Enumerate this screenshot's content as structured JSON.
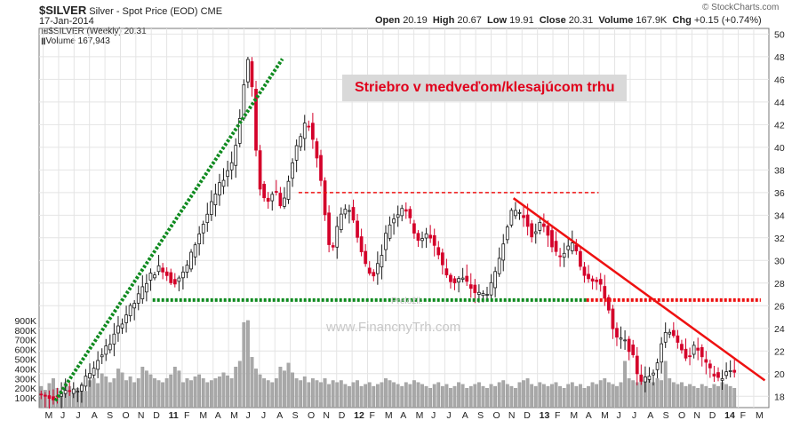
{
  "header": {
    "symbol": "$SILVER",
    "description": "Silver - Spot Price (EOD)",
    "exchange": "CME",
    "date": "17-Jan-2014",
    "open_label": "Open",
    "open": "20.19",
    "high_label": "High",
    "high": "20.67",
    "low_label": "Low",
    "low": "19.91",
    "close_label": "Close",
    "close": "20.31",
    "volume_label": "Volume",
    "volume": "167.9K",
    "chg_label": "Chg",
    "chg": "+0.15 (+0.74%)",
    "copyright": "© StockCharts.com"
  },
  "legend": {
    "price": "$SILVER (Weekly) 20.31",
    "volume": "Volume 167,943"
  },
  "annotation": {
    "title": "Striebro v medveďom/klesajúcom trhu",
    "translated": "Preložil:",
    "site": "www.FinancnyTrh.com"
  },
  "colors": {
    "up": "#1a1a1a",
    "down": "#d4002a",
    "grid": "#e4e4e4",
    "volume": "#a8a8a8",
    "green_line": "#0f8a1f",
    "red_line": "#ee1111"
  },
  "chart_data": {
    "type": "candlestick",
    "period": "weekly",
    "x_tick_labels": [
      "M",
      "J",
      "J",
      "A",
      "S",
      "O",
      "N",
      "D",
      "11",
      "F",
      "M",
      "A",
      "M",
      "J",
      "J",
      "A",
      "S",
      "O",
      "N",
      "D",
      "12",
      "F",
      "M",
      "A",
      "M",
      "J",
      "J",
      "A",
      "S",
      "O",
      "N",
      "D",
      "13",
      "F",
      "M",
      "A",
      "M",
      "J",
      "J",
      "A",
      "S",
      "O",
      "N",
      "D",
      "14",
      "F",
      "M"
    ],
    "y_ticks": [
      18,
      20,
      22,
      24,
      26,
      28,
      30,
      32,
      34,
      36,
      38,
      40,
      42,
      44,
      46,
      48,
      50
    ],
    "ylim": [
      17,
      50.5
    ],
    "volume_ticks": [
      "100K",
      "200K",
      "300K",
      "400K",
      "500K",
      "600K",
      "700K",
      "800K",
      "900K"
    ],
    "volume_ylim": [
      0,
      1000000
    ],
    "price_path": [
      [
        0,
        18.2
      ],
      [
        3,
        17.8
      ],
      [
        6,
        18.6
      ],
      [
        9,
        18.3
      ],
      [
        12,
        19.8
      ],
      [
        15,
        21.5
      ],
      [
        18,
        23.0
      ],
      [
        21,
        25.0
      ],
      [
        24,
        26.5
      ],
      [
        27,
        28.5
      ],
      [
        30,
        29.5
      ],
      [
        33,
        28.0
      ],
      [
        36,
        29.0
      ],
      [
        39,
        32.0
      ],
      [
        42,
        34.5
      ],
      [
        45,
        37.0
      ],
      [
        48,
        39.0
      ],
      [
        50,
        44.0
      ],
      [
        51,
        47.0
      ],
      [
        52,
        48.5
      ],
      [
        53,
        42.0
      ],
      [
        54,
        37.0
      ],
      [
        56,
        35.0
      ],
      [
        58,
        36.5
      ],
      [
        60,
        34.5
      ],
      [
        62,
        38.0
      ],
      [
        64,
        40.5
      ],
      [
        66,
        42.5
      ],
      [
        68,
        40.0
      ],
      [
        70,
        36.0
      ],
      [
        71,
        32.0
      ],
      [
        72,
        30.5
      ],
      [
        74,
        33.5
      ],
      [
        76,
        35.0
      ],
      [
        78,
        33.0
      ],
      [
        80,
        30.0
      ],
      [
        82,
        28.5
      ],
      [
        84,
        30.0
      ],
      [
        86,
        33.0
      ],
      [
        88,
        34.0
      ],
      [
        90,
        35.0
      ],
      [
        92,
        33.0
      ],
      [
        94,
        31.5
      ],
      [
        96,
        32.5
      ],
      [
        98,
        31.0
      ],
      [
        100,
        29.0
      ],
      [
        102,
        28.0
      ],
      [
        104,
        28.5
      ],
      [
        106,
        27.8
      ],
      [
        108,
        27.0
      ],
      [
        110,
        27.0
      ],
      [
        112,
        28.0
      ],
      [
        114,
        31.0
      ],
      [
        116,
        34.0
      ],
      [
        118,
        34.5
      ],
      [
        120,
        33.5
      ],
      [
        122,
        32.0
      ],
      [
        124,
        33.5
      ],
      [
        126,
        32.0
      ],
      [
        128,
        30.0
      ],
      [
        130,
        31.0
      ],
      [
        132,
        31.5
      ],
      [
        134,
        29.0
      ],
      [
        136,
        28.5
      ],
      [
        138,
        28.0
      ],
      [
        140,
        26.5
      ],
      [
        142,
        23.0
      ],
      [
        144,
        23.0
      ],
      [
        146,
        22.0
      ],
      [
        148,
        19.5
      ],
      [
        150,
        19.5
      ],
      [
        152,
        20.5
      ],
      [
        154,
        23.5
      ],
      [
        156,
        24.0
      ],
      [
        158,
        22.0
      ],
      [
        160,
        21.5
      ],
      [
        162,
        22.5
      ],
      [
        164,
        21.0
      ],
      [
        166,
        20.0
      ],
      [
        168,
        19.5
      ],
      [
        170,
        20.2
      ],
      [
        171,
        20.31
      ]
    ],
    "volume_values": [
      220000,
      180000,
      250000,
      300000,
      200000,
      160000,
      260000,
      220000,
      180000,
      200000,
      240000,
      170000,
      280000,
      300000,
      250000,
      350000,
      320000,
      260000,
      300000,
      400000,
      360000,
      280000,
      320000,
      260000,
      300000,
      420000,
      380000,
      340000,
      300000,
      280000,
      260000,
      300000,
      340000,
      420000,
      380000,
      260000,
      300000,
      280000,
      320000,
      340000,
      300000,
      260000,
      280000,
      300000,
      320000,
      360000,
      330000,
      300000,
      420000,
      480000,
      880000,
      900000,
      520000,
      400000,
      340000,
      300000,
      280000,
      260000,
      300000,
      420000,
      380000,
      460000,
      360000,
      300000,
      280000,
      320000,
      260000,
      300000,
      280000,
      260000,
      300000,
      240000,
      280000,
      260000,
      280000,
      240000,
      220000,
      260000,
      280000,
      220000,
      240000,
      260000,
      220000,
      240000,
      260000,
      300000,
      280000,
      260000,
      240000,
      220000,
      260000,
      240000,
      280000,
      260000,
      240000,
      220000,
      200000,
      240000,
      260000,
      220000,
      240000,
      200000,
      220000,
      260000,
      240000,
      200000,
      220000,
      240000,
      260000,
      220000,
      200000,
      240000,
      220000,
      260000,
      280000,
      240000,
      220000,
      200000,
      260000,
      280000,
      300000,
      240000,
      220000,
      260000,
      240000,
      220000,
      240000,
      260000,
      220000,
      200000,
      240000,
      260000,
      220000,
      240000,
      200000,
      220000,
      260000,
      240000,
      280000,
      300000,
      260000,
      240000,
      220000,
      260000,
      480000,
      300000,
      280000,
      260000,
      280000,
      320000,
      300000,
      260000,
      300000,
      280000,
      480000,
      300000,
      260000,
      240000,
      260000,
      220000,
      240000,
      220000,
      200000,
      240000,
      220000,
      200000,
      240000,
      220000,
      260000,
      240000,
      220000,
      200000,
      240000,
      220000,
      200000,
      210000,
      167943
    ],
    "annotations": [
      {
        "kind": "green dotted trendline",
        "from": [
          4,
          17.6
        ],
        "to": [
          60,
          47.8
        ]
      },
      {
        "kind": "green dotted horizontal support",
        "y": 26.5,
        "x_range": [
          28,
          135
        ]
      },
      {
        "kind": "red dotted horizontal",
        "y": 26.5,
        "x_range": [
          135,
          178
        ]
      },
      {
        "kind": "red dashed horizontal resistance",
        "y": 36.0,
        "x_range": [
          64,
          138
        ]
      },
      {
        "kind": "red solid downtrend line",
        "from": [
          117,
          35.5
        ],
        "to": [
          179,
          19.4
        ]
      }
    ]
  }
}
